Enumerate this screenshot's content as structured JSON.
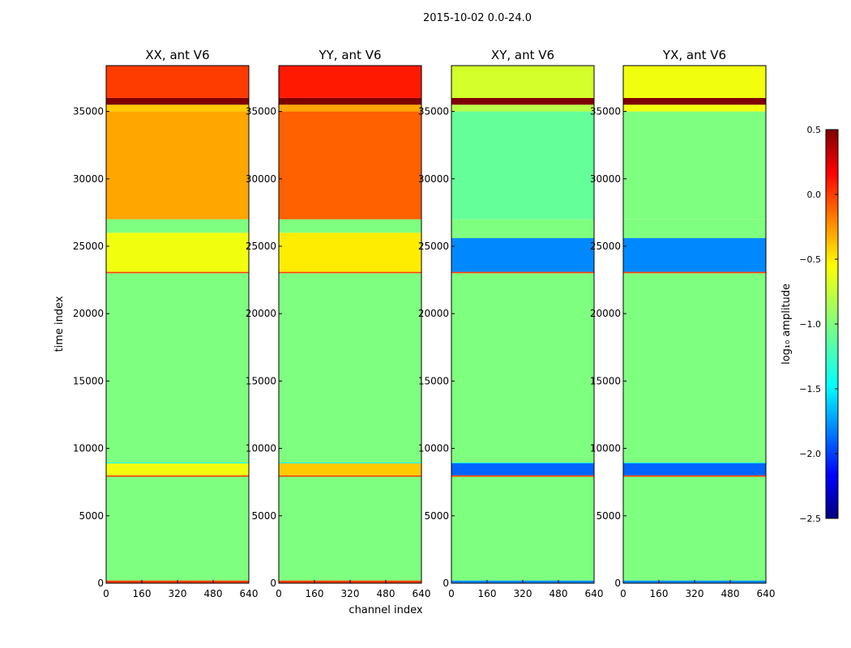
{
  "chart_data": {
    "type": "heatmap",
    "suptitle": "2015-10-02 0.0-24.0",
    "xlabel": "channel index",
    "ylabel": "time index",
    "xlim": [
      0,
      640
    ],
    "ylim": [
      0,
      38400
    ],
    "xticks": [
      "0",
      "160",
      "320",
      "480",
      "640"
    ],
    "yticks": [
      "0",
      "5000",
      "10000",
      "15000",
      "20000",
      "25000",
      "30000",
      "35000"
    ],
    "colorbar": {
      "label": "log₁₀ amplitude",
      "range": [
        -2.5,
        0.5
      ],
      "ticks": [
        "0.5",
        "0.0",
        "−0.5",
        "−1.0",
        "−1.5",
        "−2.0",
        "−2.5"
      ],
      "stops": [
        "#00007f",
        "#0000ff",
        "#00ffff",
        "#7fff7f",
        "#ffff00",
        "#ff0000",
        "#7f0000"
      ]
    },
    "panels": [
      {
        "title": "XX, ant V6",
        "rows": [
          {
            "t0": 0,
            "t1": 200,
            "value": 0.0
          },
          {
            "t0": 200,
            "t1": 7900,
            "value": -1.0
          },
          {
            "t0": 7900,
            "t1": 8000,
            "value": 0.0
          },
          {
            "t0": 8000,
            "t1": 8900,
            "value": -0.6
          },
          {
            "t0": 8900,
            "t1": 8950,
            "value": -1.5
          },
          {
            "t0": 8950,
            "t1": 23000,
            "value": -1.0
          },
          {
            "t0": 23000,
            "t1": 23100,
            "value": 0.0
          },
          {
            "t0": 23100,
            "t1": 26000,
            "value": -0.6
          },
          {
            "t0": 26000,
            "t1": 27000,
            "value": -1.0
          },
          {
            "t0": 27000,
            "t1": 35000,
            "value": -0.3
          },
          {
            "t0": 35000,
            "t1": 35500,
            "value": -0.4
          },
          {
            "t0": 35500,
            "t1": 36000,
            "value": 0.5
          },
          {
            "t0": 36000,
            "t1": 38400,
            "value": 0.0
          }
        ]
      },
      {
        "title": "YY, ant V6",
        "rows": [
          {
            "t0": 0,
            "t1": 200,
            "value": 0.0
          },
          {
            "t0": 200,
            "t1": 7900,
            "value": -1.0
          },
          {
            "t0": 7900,
            "t1": 8000,
            "value": 0.0
          },
          {
            "t0": 8000,
            "t1": 8900,
            "value": -0.4
          },
          {
            "t0": 8900,
            "t1": 8950,
            "value": -1.5
          },
          {
            "t0": 8950,
            "t1": 23000,
            "value": -1.0
          },
          {
            "t0": 23000,
            "t1": 23100,
            "value": 0.0
          },
          {
            "t0": 23100,
            "t1": 26000,
            "value": -0.5
          },
          {
            "t0": 26000,
            "t1": 27000,
            "value": -1.0
          },
          {
            "t0": 27000,
            "t1": 35000,
            "value": -0.1
          },
          {
            "t0": 35000,
            "t1": 35500,
            "value": -0.3
          },
          {
            "t0": 35500,
            "t1": 36000,
            "value": 0.5
          },
          {
            "t0": 36000,
            "t1": 38400,
            "value": 0.1
          }
        ]
      },
      {
        "title": "XY, ant V6",
        "rows": [
          {
            "t0": 0,
            "t1": 200,
            "value": -1.8
          },
          {
            "t0": 200,
            "t1": 7900,
            "value": -1.0
          },
          {
            "t0": 7900,
            "t1": 8000,
            "value": 0.0
          },
          {
            "t0": 8000,
            "t1": 8900,
            "value": -1.9
          },
          {
            "t0": 8900,
            "t1": 8950,
            "value": -1.5
          },
          {
            "t0": 8950,
            "t1": 23000,
            "value": -1.0
          },
          {
            "t0": 23000,
            "t1": 23100,
            "value": 0.0
          },
          {
            "t0": 23100,
            "t1": 25600,
            "value": -1.8
          },
          {
            "t0": 25600,
            "t1": 27000,
            "value": -1.0
          },
          {
            "t0": 27000,
            "t1": 35000,
            "value": -1.1
          },
          {
            "t0": 35000,
            "t1": 35500,
            "value": -0.8
          },
          {
            "t0": 35500,
            "t1": 36000,
            "value": 0.5
          },
          {
            "t0": 36000,
            "t1": 38400,
            "value": -0.7
          }
        ]
      },
      {
        "title": "YX, ant V6",
        "rows": [
          {
            "t0": 0,
            "t1": 200,
            "value": -1.8
          },
          {
            "t0": 200,
            "t1": 7900,
            "value": -1.0
          },
          {
            "t0": 7900,
            "t1": 8000,
            "value": 0.0
          },
          {
            "t0": 8000,
            "t1": 8900,
            "value": -1.9
          },
          {
            "t0": 8900,
            "t1": 8950,
            "value": -1.5
          },
          {
            "t0": 8950,
            "t1": 23000,
            "value": -1.0
          },
          {
            "t0": 23000,
            "t1": 23100,
            "value": 0.0
          },
          {
            "t0": 23100,
            "t1": 25600,
            "value": -1.8
          },
          {
            "t0": 25600,
            "t1": 27000,
            "value": -1.0
          },
          {
            "t0": 27000,
            "t1": 35000,
            "value": -1.0
          },
          {
            "t0": 35000,
            "t1": 35500,
            "value": -0.6
          },
          {
            "t0": 35500,
            "t1": 36000,
            "value": 0.5
          },
          {
            "t0": 36000,
            "t1": 38400,
            "value": -0.6
          }
        ]
      }
    ]
  }
}
